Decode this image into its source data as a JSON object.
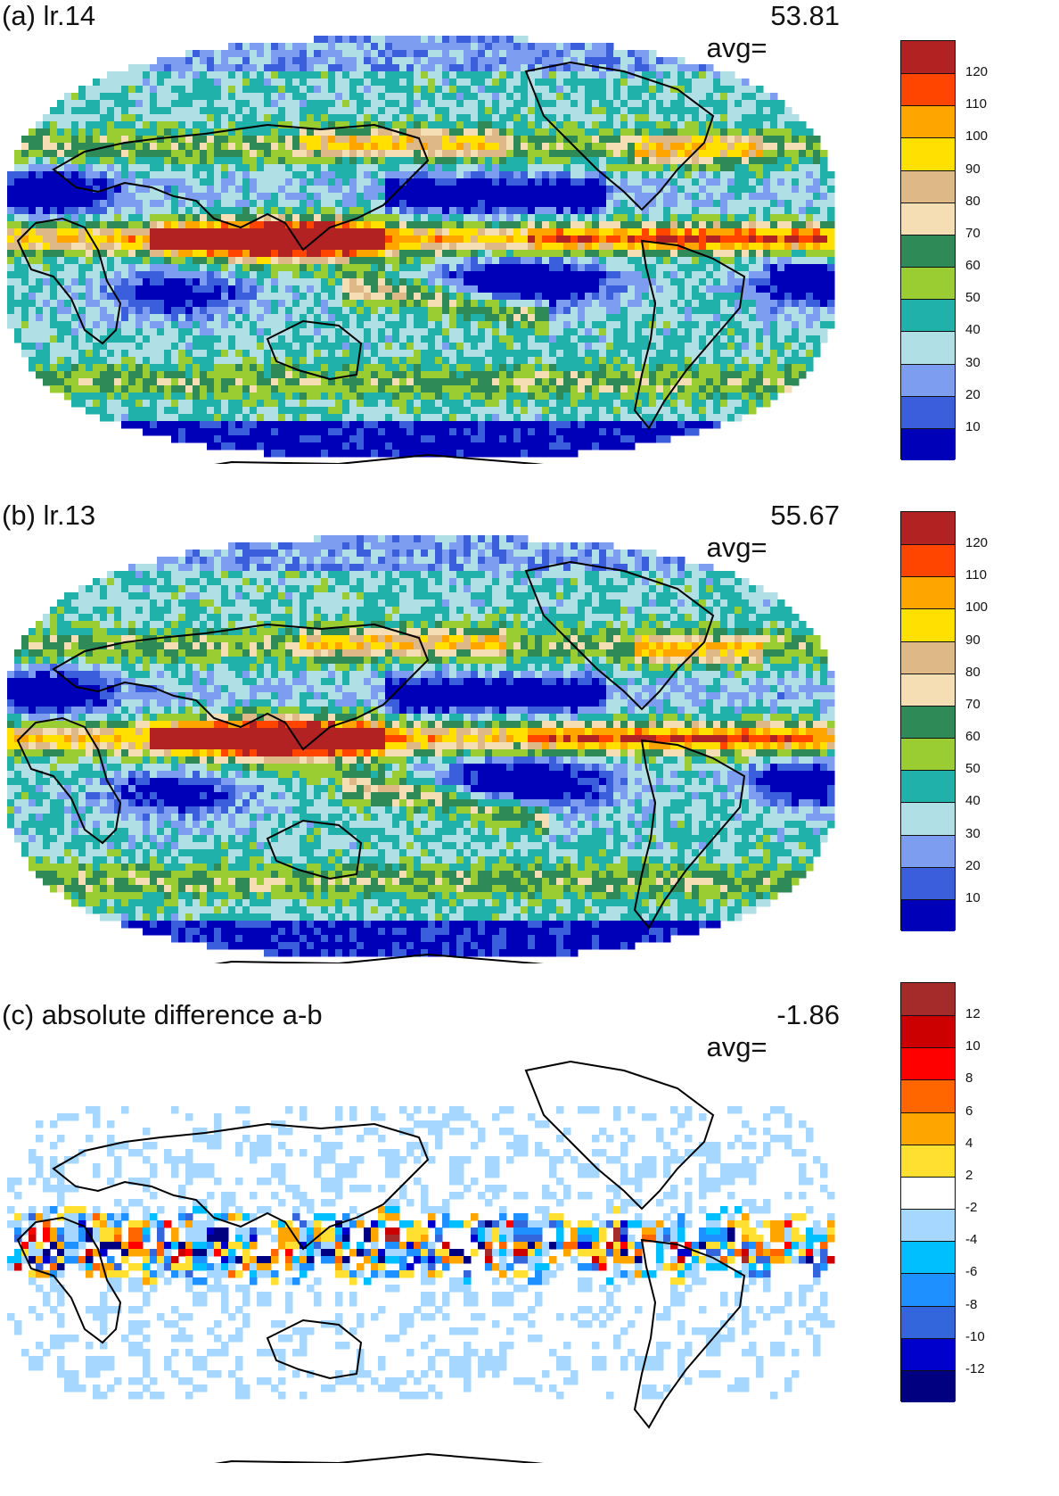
{
  "panels": [
    {
      "id": "a",
      "title": "(a) lr.14",
      "avg_label": "avg=",
      "avg_value": "53.81",
      "colorbar": {
        "colors": [
          "#0000b8",
          "#3b5fdc",
          "#7d9ef0",
          "#b0e0e6",
          "#20b2aa",
          "#9acd32",
          "#2e8b57",
          "#f5deb3",
          "#deb887",
          "#ffe000",
          "#ffa500",
          "#ff4500",
          "#b22222"
        ],
        "labels": [
          "120",
          "110",
          "100",
          "90",
          "80",
          "70",
          "60",
          "50",
          "40",
          "30",
          "20",
          "10"
        ]
      }
    },
    {
      "id": "b",
      "title": "(b) lr.13",
      "avg_label": "avg=",
      "avg_value": "55.67",
      "colorbar": {
        "colors": [
          "#0000b8",
          "#3b5fdc",
          "#7d9ef0",
          "#b0e0e6",
          "#20b2aa",
          "#9acd32",
          "#2e8b57",
          "#f5deb3",
          "#deb887",
          "#ffe000",
          "#ffa500",
          "#ff4500",
          "#b22222"
        ],
        "labels": [
          "120",
          "110",
          "100",
          "90",
          "80",
          "70",
          "60",
          "50",
          "40",
          "30",
          "20",
          "10"
        ]
      }
    },
    {
      "id": "c",
      "title": "(c) absolute difference a-b",
      "avg_label": "avg=",
      "avg_value": "-1.86",
      "colorbar": {
        "colors": [
          "#000080",
          "#0000cd",
          "#3366dd",
          "#1e90ff",
          "#00bfff",
          "#a6d8ff",
          "#ffffff",
          "#ffe030",
          "#ffa500",
          "#ff6600",
          "#ff0000",
          "#cc0000",
          "#a52a2a"
        ],
        "labels": [
          "12",
          "10",
          "8",
          "6",
          "4",
          "2",
          "-2",
          "-4",
          "-6",
          "-8",
          "-10",
          "-12"
        ]
      }
    }
  ]
}
